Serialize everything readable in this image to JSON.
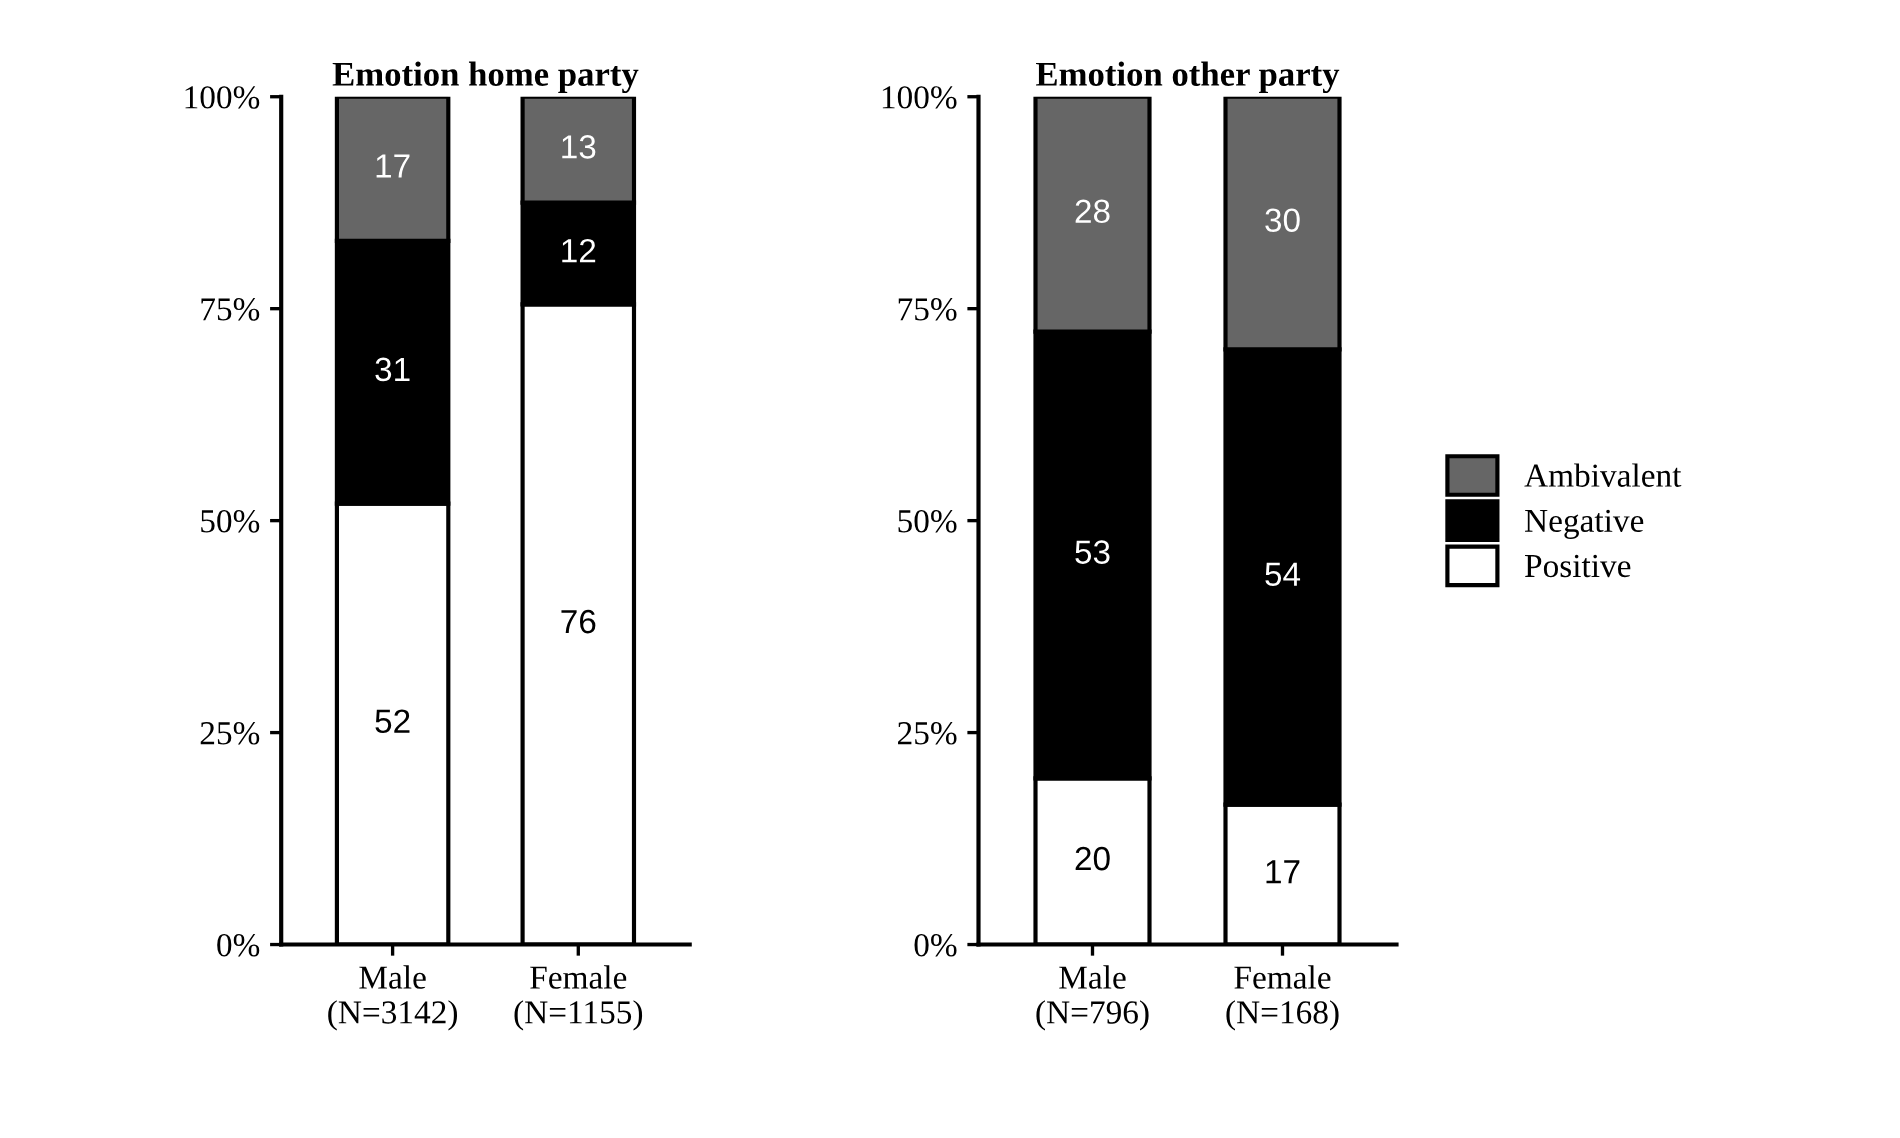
{
  "chart_data": [
    {
      "type": "bar",
      "stacked": true,
      "title": "Emotion home party",
      "categories": [
        "Male\n(N=3142)",
        "Female\n(N=1155)"
      ],
      "ylim": [
        0,
        100
      ],
      "yticks": [
        {
          "value": 0,
          "label": "0%"
        },
        {
          "value": 25,
          "label": "25%"
        },
        {
          "value": 50,
          "label": "50%"
        },
        {
          "value": 75,
          "label": "75%"
        },
        {
          "value": 100,
          "label": "100%"
        }
      ],
      "legend": false,
      "series": [
        {
          "color": "#ffffff",
          "values": [
            52,
            75.5
          ],
          "value_labels": [
            "52",
            "76"
          ]
        },
        {
          "color": "#000000",
          "values": [
            31,
            12
          ],
          "value_labels": [
            "31",
            "12"
          ]
        },
        {
          "color": "#666666",
          "values": [
            17,
            12.5
          ],
          "value_labels": [
            "17",
            "13"
          ]
        }
      ]
    },
    {
      "type": "bar",
      "stacked": true,
      "title": "Emotion other party",
      "categories": [
        "Male\n(N=796)",
        "Female\n(N=168)"
      ],
      "ylim": [
        0,
        100
      ],
      "yticks": [
        {
          "value": 0,
          "label": "0%"
        },
        {
          "value": 25,
          "label": "25%"
        },
        {
          "value": 50,
          "label": "50%"
        },
        {
          "value": 75,
          "label": "75%"
        },
        {
          "value": 100,
          "label": "100%"
        }
      ],
      "legend": "right",
      "series": [
        {
          "name": "Positive",
          "color": "#ffffff",
          "values": [
            19.6,
            16.5
          ],
          "value_labels": [
            "20",
            "17"
          ]
        },
        {
          "name": "Negative",
          "color": "#000000",
          "values": [
            52.7,
            53.7
          ],
          "value_labels": [
            "53",
            "54"
          ]
        },
        {
          "name": "Ambivalent",
          "color": "#666666",
          "values": [
            27.7,
            29.8
          ],
          "value_labels": [
            "28",
            "30"
          ]
        }
      ]
    }
  ]
}
